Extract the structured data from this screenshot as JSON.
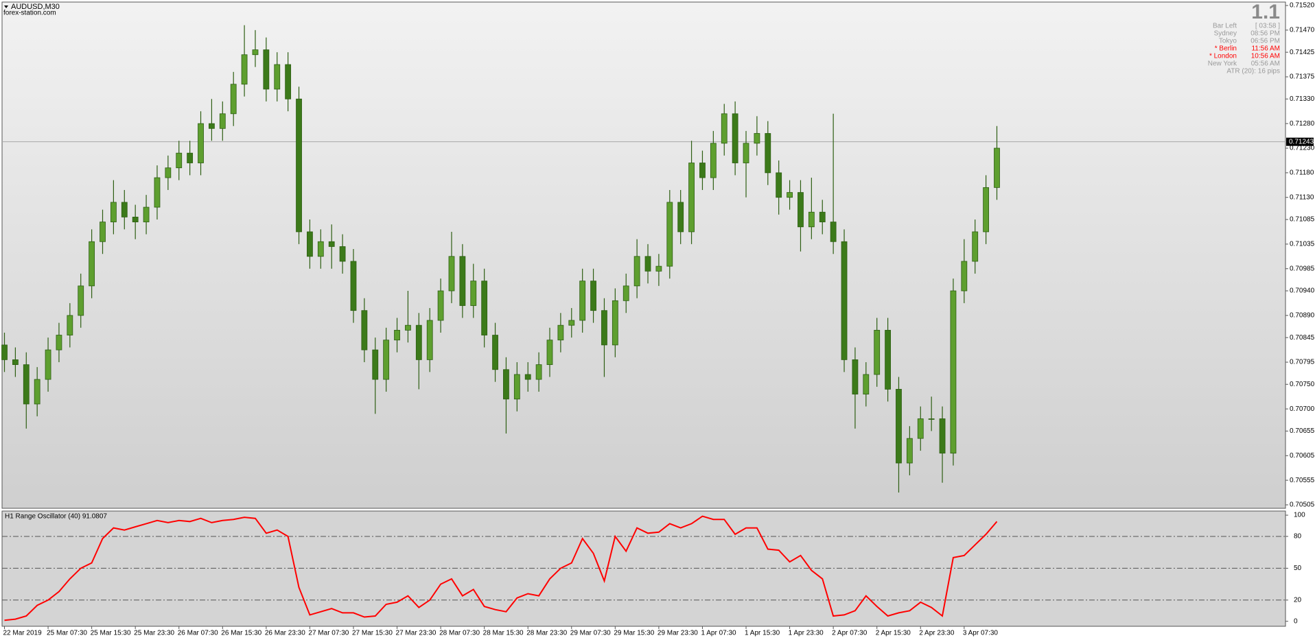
{
  "header": {
    "symbol": "AUDUSD,M30",
    "site": "forex-station.com"
  },
  "info": {
    "big": "1.1",
    "rows": [
      {
        "label": "Bar Left",
        "value": "[ 03:58 ]",
        "color": "#9a9a9a"
      },
      {
        "label": "Sydney",
        "value": "08:56 PM",
        "color": "#9a9a9a"
      },
      {
        "label": "Tokyo",
        "value": "06:56 PM",
        "color": "#9a9a9a"
      },
      {
        "label": "* Berlin",
        "value": "11:56 AM",
        "color": "#ff0000"
      },
      {
        "label": "* London",
        "value": "10:56 AM",
        "color": "#ff0000"
      },
      {
        "label": "New York",
        "value": "05:56 AM",
        "color": "#9a9a9a"
      }
    ],
    "atr": "ATR (20): 16 pips"
  },
  "chart_data": [
    {
      "type": "candlestick",
      "categories": [
        "22 Mar 2019",
        null,
        null,
        null,
        "25 Mar 07:30",
        null,
        null,
        null,
        "25 Mar 15:30",
        null,
        null,
        null,
        "25 Mar 23:30",
        null,
        null,
        null,
        "26 Mar 07:30",
        null,
        null,
        null,
        "26 Mar 15:30",
        null,
        null,
        null,
        "26 Mar 23:30",
        null,
        null,
        null,
        "27 Mar 07:30",
        null,
        null,
        null,
        "27 Mar 15:30",
        null,
        null,
        null,
        "27 Mar 23:30",
        null,
        null,
        null,
        "28 Mar 07:30",
        null,
        null,
        null,
        "28 Mar 15:30",
        null,
        null,
        null,
        "28 Mar 23:30",
        null,
        null,
        null,
        "29 Mar 07:30",
        null,
        null,
        null,
        "29 Mar 15:30",
        null,
        null,
        null,
        "29 Mar 23:30",
        null,
        null,
        null,
        "1 Apr 07:30",
        null,
        null,
        null,
        "1 Apr 15:30",
        null,
        null,
        null,
        "1 Apr 23:30",
        null,
        null,
        null,
        "2 Apr 07:30",
        null,
        null,
        null,
        "2 Apr 15:30",
        null,
        null,
        null,
        "2 Apr 23:30",
        null,
        null,
        null,
        "3 Apr 07:30",
        null,
        null,
        null
      ],
      "open": [
        0.7083,
        0.708,
        0.7079,
        0.7071,
        0.7076,
        0.7082,
        0.7085,
        0.7089,
        0.7095,
        0.7104,
        0.7108,
        0.7112,
        0.7109,
        0.7108,
        0.7111,
        0.7117,
        0.7119,
        0.7122,
        0.712,
        0.7128,
        0.7127,
        0.713,
        0.7136,
        0.7142,
        0.7143,
        0.7135,
        0.714,
        0.7133,
        0.7106,
        0.7101,
        0.7104,
        0.7103,
        0.71,
        0.709,
        0.7082,
        0.7076,
        0.7084,
        0.7086,
        0.7087,
        0.708,
        0.7088,
        0.7094,
        0.7101,
        0.7091,
        0.7096,
        0.7085,
        0.7078,
        0.7072,
        0.7077,
        0.7076,
        0.7079,
        0.7084,
        0.7087,
        0.7088,
        0.7096,
        0.709,
        0.7083,
        0.7092,
        0.7095,
        0.7101,
        0.7098,
        0.7099,
        0.7112,
        0.7106,
        0.712,
        0.7117,
        0.7124,
        0.713,
        0.712,
        0.7124,
        0.7126,
        0.7118,
        0.7113,
        0.7114,
        0.7107,
        0.711,
        0.7108,
        0.7104,
        0.708,
        0.7073,
        0.7077,
        0.7086,
        0.7074,
        0.7059,
        0.7064,
        0.7068,
        0.7068,
        0.7061,
        0.7094,
        0.71,
        0.7106,
        0.7115
      ],
      "high": [
        0.70855,
        0.70825,
        0.70815,
        0.70785,
        0.70845,
        0.70875,
        0.70915,
        0.70975,
        0.71065,
        0.71105,
        0.71165,
        0.71145,
        0.71115,
        0.71135,
        0.71195,
        0.71215,
        0.71245,
        0.71245,
        0.71305,
        0.7133,
        0.71325,
        0.71385,
        0.7148,
        0.7147,
        0.71455,
        0.71425,
        0.71425,
        0.71355,
        0.71085,
        0.71065,
        0.71075,
        0.71055,
        0.71025,
        0.70925,
        0.70845,
        0.70865,
        0.70885,
        0.7094,
        0.70895,
        0.70905,
        0.70965,
        0.7106,
        0.71035,
        0.70995,
        0.70985,
        0.70875,
        0.70805,
        0.70795,
        0.70795,
        0.70815,
        0.70865,
        0.70895,
        0.70905,
        0.70985,
        0.70985,
        0.70925,
        0.70945,
        0.70975,
        0.71045,
        0.71035,
        0.71015,
        0.71145,
        0.71145,
        0.71245,
        0.71225,
        0.71265,
        0.7132,
        0.71325,
        0.71265,
        0.71295,
        0.71285,
        0.71205,
        0.71165,
        0.71165,
        0.7117,
        0.71125,
        0.713,
        0.71065,
        0.70825,
        0.70795,
        0.70885,
        0.70885,
        0.70765,
        0.70665,
        0.70705,
        0.70725,
        0.70705,
        0.70965,
        0.71045,
        0.71085,
        0.71175,
        0.71275
      ],
      "low": [
        0.70775,
        0.70765,
        0.7066,
        0.70685,
        0.70735,
        0.70795,
        0.70825,
        0.70865,
        0.70925,
        0.71015,
        0.71055,
        0.71065,
        0.71045,
        0.71055,
        0.71085,
        0.71145,
        0.71165,
        0.71175,
        0.71175,
        0.71245,
        0.71245,
        0.71275,
        0.71335,
        0.71395,
        0.71325,
        0.71325,
        0.71305,
        0.71035,
        0.70985,
        0.70985,
        0.70985,
        0.70975,
        0.70875,
        0.70795,
        0.7069,
        0.70735,
        0.70815,
        0.70835,
        0.7074,
        0.70775,
        0.70855,
        0.70915,
        0.70885,
        0.70885,
        0.70825,
        0.70755,
        0.7065,
        0.70695,
        0.70735,
        0.70735,
        0.70765,
        0.70815,
        0.70845,
        0.70855,
        0.70875,
        0.70765,
        0.70805,
        0.70895,
        0.70925,
        0.70955,
        0.7095,
        0.70965,
        0.71035,
        0.71035,
        0.71145,
        0.71145,
        0.71215,
        0.71175,
        0.7113,
        0.71215,
        0.71155,
        0.71095,
        0.71105,
        0.7102,
        0.71045,
        0.71055,
        0.71015,
        0.70775,
        0.7066,
        0.70705,
        0.70745,
        0.70715,
        0.7053,
        0.70565,
        0.70615,
        0.70655,
        0.7055,
        0.70585,
        0.70915,
        0.70975,
        0.71035,
        0.71125
      ],
      "close": [
        0.708,
        0.7079,
        0.7071,
        0.7076,
        0.7082,
        0.7085,
        0.7089,
        0.7095,
        0.7104,
        0.7108,
        0.7112,
        0.7109,
        0.7108,
        0.7111,
        0.7117,
        0.7119,
        0.7122,
        0.712,
        0.7128,
        0.7127,
        0.713,
        0.7136,
        0.7142,
        0.7143,
        0.7135,
        0.714,
        0.7133,
        0.7106,
        0.7101,
        0.7104,
        0.7103,
        0.71,
        0.709,
        0.7082,
        0.7076,
        0.7084,
        0.7086,
        0.7087,
        0.708,
        0.7088,
        0.7094,
        0.7101,
        0.7091,
        0.7096,
        0.7085,
        0.7078,
        0.7072,
        0.7077,
        0.7076,
        0.7079,
        0.7084,
        0.7087,
        0.7088,
        0.7096,
        0.709,
        0.7083,
        0.7092,
        0.7095,
        0.7101,
        0.7098,
        0.7099,
        0.7112,
        0.7106,
        0.712,
        0.7117,
        0.7124,
        0.713,
        0.712,
        0.7124,
        0.7126,
        0.7118,
        0.7113,
        0.7114,
        0.7107,
        0.711,
        0.7108,
        0.7104,
        0.708,
        0.7073,
        0.7077,
        0.7086,
        0.7074,
        0.7059,
        0.7064,
        0.7068,
        0.7068,
        0.7061,
        0.7094,
        0.71,
        0.7106,
        0.7115,
        0.7123
      ],
      "up_color": "#5e9f2f",
      "down_color": "#3c7a1a",
      "wick_color": "#2d5e12",
      "ylim": [
        0.70498,
        0.71527
      ],
      "yticks": [
        {
          "value": 0.7152,
          "label": "0.71520"
        },
        {
          "value": 0.7147,
          "label": "0.71470"
        },
        {
          "value": 0.71425,
          "label": "0.71425"
        },
        {
          "value": 0.71375,
          "label": "0.71375"
        },
        {
          "value": 0.7133,
          "label": "0.71330"
        },
        {
          "value": 0.7128,
          "label": "0.71280"
        },
        {
          "value": 0.7123,
          "label": "0.71230"
        },
        {
          "value": 0.7118,
          "label": "0.71180"
        },
        {
          "value": 0.7113,
          "label": "0.71130"
        },
        {
          "value": 0.71085,
          "label": "0.71085"
        },
        {
          "value": 0.71035,
          "label": "0.71035"
        },
        {
          "value": 0.70985,
          "label": "0.70985"
        },
        {
          "value": 0.7094,
          "label": "0.70940"
        },
        {
          "value": 0.7089,
          "label": "0.70890"
        },
        {
          "value": 0.70845,
          "label": "0.70845"
        },
        {
          "value": 0.70795,
          "label": "0.70795"
        },
        {
          "value": 0.7075,
          "label": "0.70750"
        },
        {
          "value": 0.707,
          "label": "0.70700"
        },
        {
          "value": 0.70655,
          "label": "0.70655"
        },
        {
          "value": 0.70605,
          "label": "0.70605"
        },
        {
          "value": 0.70555,
          "label": "0.70555"
        },
        {
          "value": 0.70505,
          "label": "0.70505"
        }
      ],
      "current_price": {
        "value": 0.71243,
        "label": "0.71243"
      }
    },
    {
      "type": "line",
      "title": "H1 Range Oscillator (40) 91.0807",
      "color": "#ff0000",
      "values": [
        1,
        2,
        5,
        15,
        20,
        28,
        40,
        50,
        55,
        78,
        88,
        86,
        89,
        92,
        95,
        93,
        95,
        94,
        97,
        93,
        95,
        96,
        98,
        97,
        83,
        86,
        80,
        32,
        6,
        9,
        12,
        8,
        8,
        4,
        5,
        16,
        18,
        24,
        13,
        20,
        35,
        40,
        24,
        30,
        14,
        11,
        9,
        22,
        26,
        24,
        40,
        50,
        55,
        78,
        64,
        38,
        80,
        66,
        88,
        83,
        84,
        92,
        88,
        92,
        99,
        96,
        96,
        82,
        88,
        88,
        68,
        67,
        56,
        62,
        48,
        40,
        5,
        6,
        10,
        24,
        14,
        5,
        8,
        10,
        18,
        13,
        5,
        60,
        62,
        72,
        82,
        94
      ],
      "ylim": [
        -4.7,
        103.9
      ],
      "yticks": [
        100,
        80,
        50,
        20,
        0
      ],
      "levels": [
        80,
        50,
        20
      ]
    }
  ]
}
